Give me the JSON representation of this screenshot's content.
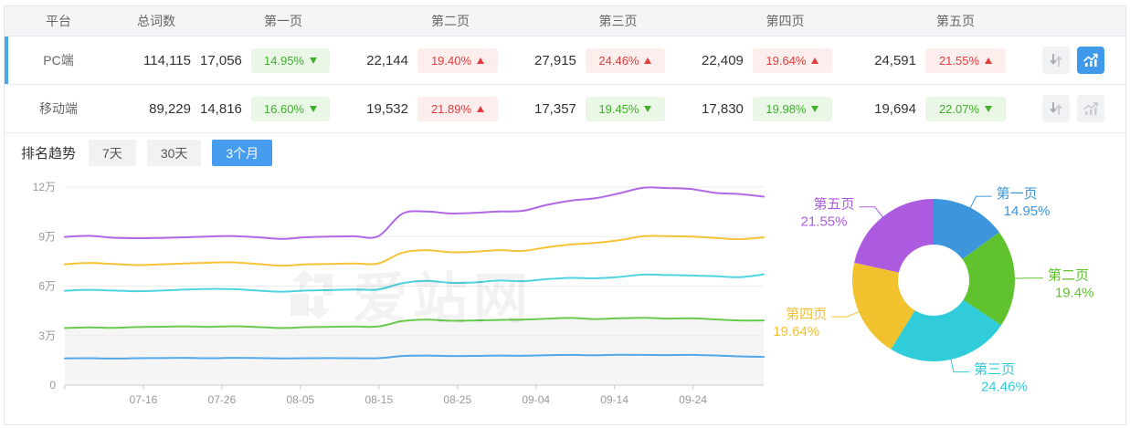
{
  "table": {
    "columns": [
      "平台",
      "总词数",
      "第一页",
      "第二页",
      "第三页",
      "第四页",
      "第五页"
    ],
    "rows": [
      {
        "platform": "PC端",
        "total": "114,115",
        "selected": true,
        "chart_active": true,
        "pages": [
          {
            "value": "17,056",
            "pct": "14.95%",
            "dir": "down"
          },
          {
            "value": "22,144",
            "pct": "19.40%",
            "dir": "up"
          },
          {
            "value": "27,915",
            "pct": "24.46%",
            "dir": "up"
          },
          {
            "value": "22,409",
            "pct": "19.64%",
            "dir": "up"
          },
          {
            "value": "24,591",
            "pct": "21.55%",
            "dir": "up"
          }
        ]
      },
      {
        "platform": "移动端",
        "total": "89,229",
        "selected": false,
        "chart_active": false,
        "pages": [
          {
            "value": "14,816",
            "pct": "16.60%",
            "dir": "down"
          },
          {
            "value": "19,532",
            "pct": "21.89%",
            "dir": "up"
          },
          {
            "value": "17,357",
            "pct": "19.45%",
            "dir": "down"
          },
          {
            "value": "17,830",
            "pct": "19.98%",
            "dir": "down"
          },
          {
            "value": "19,694",
            "pct": "22.07%",
            "dir": "down"
          }
        ]
      }
    ]
  },
  "icons": {
    "sort": "sort-arrows-icon",
    "trend": "trend-chart-icon",
    "watermark_logo": "aizhan-logo-icon"
  },
  "trend": {
    "title": "排名趋势",
    "tabs": [
      {
        "label": "7天",
        "active": false
      },
      {
        "label": "30天",
        "active": false
      },
      {
        "label": "3个月",
        "active": true
      }
    ]
  },
  "watermark": {
    "text": "爱站网"
  },
  "colors": {
    "accent_blue": "#469df0",
    "selected_row_bar": "#4aa5ea",
    "badge_up_red": "#e03e3e",
    "badge_down_green": "#3fb02c",
    "axis_text": "#999999",
    "grid_line": "#ececec"
  },
  "chart_data": [
    {
      "type": "line",
      "title": "排名趋势 3个月",
      "x_start_date": "07-06",
      "x_domain_days": [
        0,
        89
      ],
      "x_ticks": [
        {
          "day": 10,
          "label": "07-16"
        },
        {
          "day": 20,
          "label": "07-26"
        },
        {
          "day": 30,
          "label": "08-05"
        },
        {
          "day": 40,
          "label": "08-15"
        },
        {
          "day": 50,
          "label": "08-25"
        },
        {
          "day": 60,
          "label": "09-04"
        },
        {
          "day": 70,
          "label": "09-14"
        },
        {
          "day": 80,
          "label": "09-24"
        }
      ],
      "ylim": [
        0,
        12
      ],
      "y_ticks": [
        {
          "v": 0,
          "label": "0"
        },
        {
          "v": 3,
          "label": "3万"
        },
        {
          "v": 6,
          "label": "6万"
        },
        {
          "v": 9,
          "label": "9万"
        },
        {
          "v": 12,
          "label": "12万"
        }
      ],
      "value_unit": "万",
      "smooth": true,
      "cumulative": true,
      "area_under_series_index": 1,
      "area_color": "rgba(0,0,0,0.04)",
      "series": [
        {
          "name": "第一页",
          "color": "#55a8e8",
          "values": [
            1.62,
            1.63,
            1.61,
            1.63,
            1.64,
            1.65,
            1.63,
            1.65,
            1.64,
            1.62,
            1.63,
            1.64,
            1.63,
            1.63,
            1.76,
            1.79,
            1.76,
            1.77,
            1.79,
            1.78,
            1.81,
            1.83,
            1.81,
            1.84,
            1.83,
            1.82,
            1.83,
            1.8,
            1.74,
            1.71
          ]
        },
        {
          "name": "第二页",
          "color": "#68ca4f",
          "values": [
            3.46,
            3.5,
            3.47,
            3.52,
            3.54,
            3.56,
            3.53,
            3.57,
            3.52,
            3.46,
            3.51,
            3.53,
            3.55,
            3.55,
            3.88,
            3.97,
            3.9,
            3.92,
            3.95,
            3.97,
            4.02,
            4.07,
            4.0,
            4.05,
            4.08,
            4.03,
            4.05,
            3.98,
            3.92,
            3.92
          ]
        },
        {
          "name": "第三页",
          "color": "#4ed4df",
          "values": [
            5.72,
            5.77,
            5.73,
            5.69,
            5.73,
            5.79,
            5.83,
            5.81,
            5.73,
            5.66,
            5.73,
            5.76,
            5.79,
            5.79,
            6.18,
            6.32,
            6.2,
            6.22,
            6.34,
            6.3,
            6.42,
            6.5,
            6.47,
            6.55,
            6.7,
            6.67,
            6.64,
            6.6,
            6.54,
            6.71
          ]
        },
        {
          "name": "第四页",
          "color": "#f6c337",
          "values": [
            7.32,
            7.4,
            7.34,
            7.27,
            7.32,
            7.37,
            7.42,
            7.44,
            7.34,
            7.24,
            7.32,
            7.34,
            7.37,
            7.37,
            8.02,
            8.18,
            8.05,
            8.08,
            8.18,
            8.13,
            8.35,
            8.52,
            8.62,
            8.78,
            9.02,
            9.03,
            9.0,
            8.92,
            8.85,
            8.95
          ]
        },
        {
          "name": "第五页",
          "color": "#b168e6",
          "values": [
            8.98,
            9.05,
            8.93,
            8.9,
            8.92,
            8.96,
            9.01,
            9.03,
            8.96,
            8.86,
            8.96,
            9.0,
            9.02,
            9.02,
            10.38,
            10.52,
            10.4,
            10.44,
            10.52,
            10.56,
            10.92,
            11.18,
            11.32,
            11.62,
            11.96,
            11.94,
            11.88,
            11.65,
            11.58,
            11.42
          ]
        }
      ]
    },
    {
      "type": "pie",
      "donut": true,
      "start_angle": "top",
      "direction": "clockwise",
      "slices": [
        {
          "label": "第一页",
          "pct": "14.95%",
          "value": 14.95,
          "color": "#3d96db"
        },
        {
          "label": "第二页",
          "pct": "19.4%",
          "value": 19.4,
          "color": "#5fc22e"
        },
        {
          "label": "第三页",
          "pct": "24.46%",
          "value": 24.46,
          "color": "#30ccd9"
        },
        {
          "label": "第四页",
          "pct": "19.64%",
          "value": 19.64,
          "color": "#f2c12e"
        },
        {
          "label": "第五页",
          "pct": "21.55%",
          "value": 21.55,
          "color": "#ac5be0"
        }
      ]
    }
  ]
}
